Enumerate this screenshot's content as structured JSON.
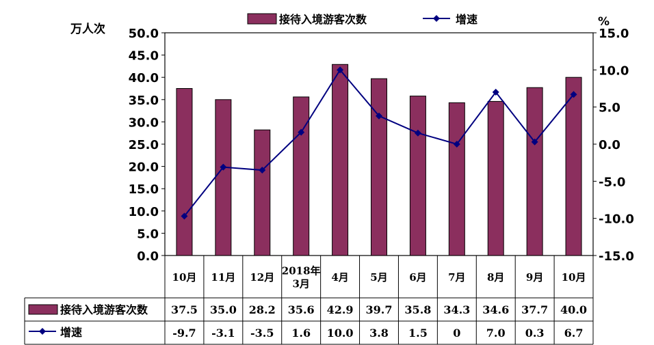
{
  "chart_data": {
    "type": "bar+line",
    "categories": [
      "10月",
      "11月",
      "12月",
      "2018年\n3月",
      "4月",
      "5月",
      "6月",
      "7月",
      "8月",
      "9月",
      "10月"
    ],
    "series": [
      {
        "name": "接待入境游客次数",
        "type": "bar",
        "axis": "left",
        "color": "#8B2F5E",
        "values": [
          37.5,
          35.0,
          28.2,
          35.6,
          42.9,
          39.7,
          35.8,
          34.3,
          34.6,
          37.7,
          40.0
        ],
        "labels": [
          "37.5",
          "35.0",
          "28.2",
          "35.6",
          "42.9",
          "39.7",
          "35.8",
          "34.3",
          "34.6",
          "37.7",
          "40.0"
        ]
      },
      {
        "name": "增速",
        "type": "line",
        "axis": "right",
        "color": "#000080",
        "values": [
          -9.7,
          -3.1,
          -3.5,
          1.6,
          10.0,
          3.8,
          1.5,
          0,
          7.0,
          0.3,
          6.7
        ],
        "labels": [
          "-9.7",
          "-3.1",
          "-3.5",
          "1.6",
          "10.0",
          "3.8",
          "1.5",
          "0",
          "7.0",
          "0.3",
          "6.7"
        ]
      }
    ],
    "y_left": {
      "label": "万人次",
      "min": 0,
      "max": 50,
      "step": 5,
      "ticks": [
        "0.0",
        "5.0",
        "10.0",
        "15.0",
        "20.0",
        "25.0",
        "30.0",
        "35.0",
        "40.0",
        "45.0",
        "50.0"
      ]
    },
    "y_right": {
      "label": "%",
      "min": -15,
      "max": 15,
      "step": 5,
      "ticks": [
        "-15.0",
        "-10.0",
        "-5.0",
        "0.0",
        "5.0",
        "10.0",
        "15.0"
      ]
    },
    "legend": {
      "position": "top"
    },
    "data_table": true,
    "grid": false
  }
}
